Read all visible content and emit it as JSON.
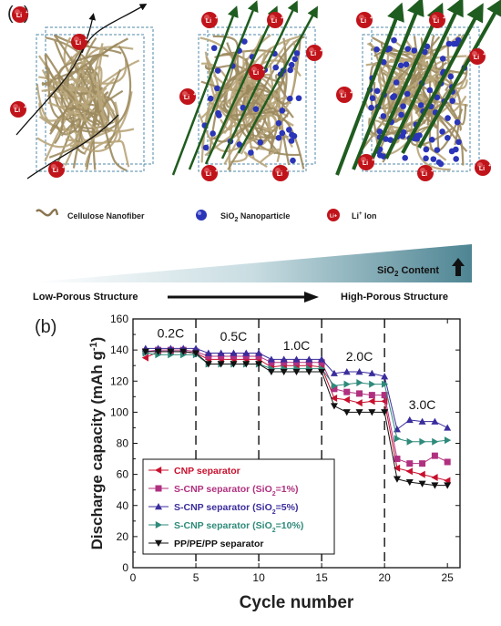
{
  "panel_a": {
    "label": "(a)",
    "li_label": "Li",
    "li_sup": "+",
    "legend": {
      "fiber": "Cellulose Nanofiber",
      "nano_prefix": "SiO",
      "nano_sub": "2",
      "nano_suffix": " Nanoparticle",
      "ion_prefix": "Li",
      "ion_sup": "+",
      "ion_suffix": " Ion"
    },
    "content_prefix": "SiO",
    "content_sub": "2",
    "content_suffix": " Content",
    "low_label": "Low-Porous Structure",
    "high_label": "High-Porous Structure",
    "colors": {
      "fiber": "#b8a57a",
      "nanoparticle": "#2a35b8",
      "ion": "#c0141a",
      "arrow": "#1f5c1f",
      "gradient_end": "#4e8593"
    }
  },
  "panel_b": {
    "label": "(b)"
  },
  "chart_data": {
    "type": "line",
    "xlabel": "Cycle number",
    "ylabel_prefix": "Discharge capacity (mAh g",
    "ylabel_sup": "-1",
    "ylabel_suffix": ")",
    "xlim": [
      0,
      26
    ],
    "ylim": [
      0,
      160
    ],
    "xticks": [
      0,
      5,
      10,
      15,
      20,
      25
    ],
    "yticks": [
      0,
      20,
      40,
      60,
      80,
      100,
      120,
      140,
      160
    ],
    "x": [
      1,
      2,
      3,
      4,
      5,
      6,
      7,
      8,
      9,
      10,
      11,
      12,
      13,
      14,
      15,
      16,
      17,
      18,
      19,
      20,
      21,
      22,
      23,
      24,
      25
    ],
    "rate_labels": [
      {
        "text": "0.2C",
        "x": 3,
        "y": 148
      },
      {
        "text": "0.5C",
        "x": 8,
        "y": 146
      },
      {
        "text": "1.0C",
        "x": 13,
        "y": 140
      },
      {
        "text": "2.0C",
        "x": 18,
        "y": 133
      },
      {
        "text": "3.0C",
        "x": 23,
        "y": 102
      }
    ],
    "dividers": [
      5,
      10,
      15,
      20
    ],
    "series": [
      {
        "name": "CNP separator",
        "color": "#c8102e",
        "marker": "tri-left",
        "values": [
          135,
          139,
          139,
          139,
          138,
          134,
          134,
          134,
          134,
          134,
          129,
          130,
          130,
          130,
          129,
          109,
          108,
          106,
          107,
          107,
          64,
          62,
          60,
          58,
          56
        ]
      },
      {
        "name": "S-CNP separator (SiO2=1%)",
        "color": "#b0307f",
        "marker": "square",
        "values": [
          139,
          140,
          140,
          140,
          139,
          136,
          136,
          136,
          136,
          136,
          132,
          132,
          132,
          132,
          132,
          115,
          113,
          112,
          111,
          111,
          70,
          67,
          67,
          72,
          68
        ]
      },
      {
        "name": "S-CNP separator (SiO2=5%)",
        "color": "#3a2d9c",
        "marker": "tri-up",
        "values": [
          141,
          141,
          141,
          141,
          141,
          138,
          138,
          138,
          138,
          138,
          134,
          134,
          134,
          134,
          134,
          125,
          126,
          126,
          125,
          123,
          89,
          95,
          94,
          94,
          90
        ]
      },
      {
        "name": "S-CNP separator (SiO2=10%)",
        "color": "#2e8a7a",
        "marker": "tri-right",
        "values": [
          138,
          137,
          137,
          137,
          137,
          131,
          131,
          131,
          131,
          131,
          128,
          128,
          128,
          128,
          128,
          117,
          118,
          119,
          118,
          118,
          83,
          81,
          81,
          81,
          82
        ]
      },
      {
        "name": "PP/PE/PP separator",
        "color": "#111111",
        "marker": "tri-down",
        "values": [
          139,
          139,
          139,
          139,
          138,
          131,
          131,
          131,
          131,
          131,
          126,
          126,
          126,
          126,
          126,
          104,
          100,
          100,
          100,
          100,
          57,
          55,
          54,
          53,
          53
        ]
      }
    ],
    "legend_items": [
      {
        "pre": "CNP separator",
        "sub": "",
        "post": ""
      },
      {
        "pre": "S-CNP separator (SiO",
        "sub": "2",
        "post": "=1%)"
      },
      {
        "pre": "S-CNP separator (SiO",
        "sub": "2",
        "post": "=5%)"
      },
      {
        "pre": "S-CNP separator (SiO",
        "sub": "2",
        "post": "=10%)"
      },
      {
        "pre": "PP/PE/PP separator",
        "sub": "",
        "post": ""
      }
    ]
  }
}
